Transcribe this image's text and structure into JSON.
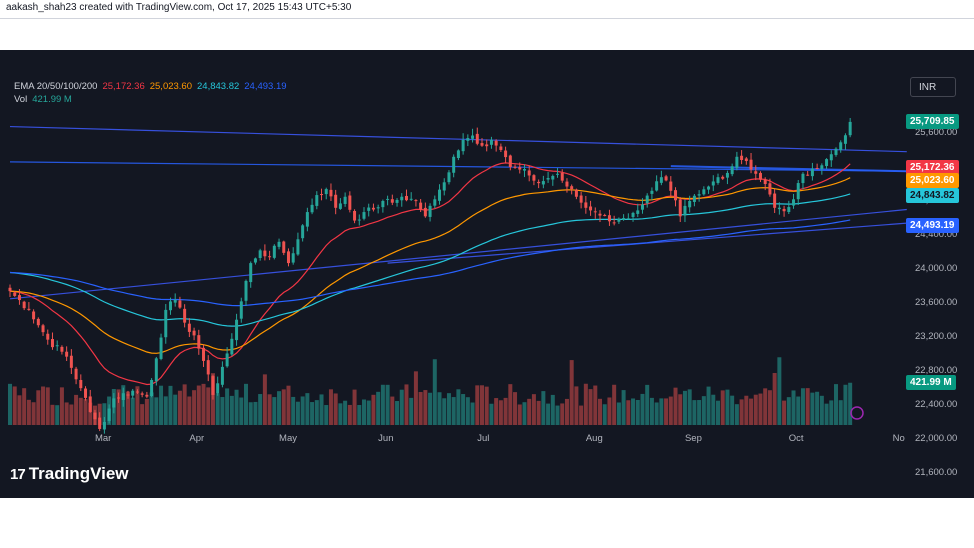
{
  "header": {
    "text": "aakash_shah23 created with TradingView.com, Oct 17, 2025 15:43 UTC+5:30"
  },
  "legend": {
    "ema_label": "EMA 20/50/100/200",
    "ema_values": [
      "25,172.36",
      "25,023.60",
      "24,843.82",
      "24,493.19"
    ],
    "ema_colors": [
      "#f23645",
      "#ff9800",
      "#26c6da",
      "#2962ff"
    ],
    "vol_label": "Vol",
    "vol_value": "421.99 M"
  },
  "currency": "INR",
  "price_tags": [
    {
      "text": "25,709.85",
      "bg": "#089981",
      "fg": "#ffffff",
      "price": 25709.85
    },
    {
      "text": "25,172.36",
      "bg": "#f23645",
      "fg": "#ffffff",
      "price": 25172.36
    },
    {
      "text": "25,023.60",
      "bg": "#ff9800",
      "fg": "#ffffff",
      "price": 25023.6
    },
    {
      "text": "24,843.82",
      "bg": "#26c6da",
      "fg": "#131722",
      "price": 24843.82
    },
    {
      "text": "24,493.19",
      "bg": "#2962ff",
      "fg": "#ffffff",
      "price": 24493.19
    }
  ],
  "volume_tag": {
    "text": "421.99 M",
    "bg": "#089981",
    "fg": "#ffffff"
  },
  "brand": {
    "name": "TradingView",
    "mark": "17"
  },
  "chart_data": {
    "type": "candlestick",
    "y_ticks": [
      "25,600.00",
      "25,200.00",
      "24,800.00",
      "24,400.00",
      "24,000.00",
      "23,600.00",
      "23,200.00",
      "22,800.00",
      "22,400.00",
      "22,000.00",
      "21,600.00"
    ],
    "y_tick_values": [
      25600,
      25200,
      24800,
      24400,
      24000,
      23600,
      23200,
      22800,
      22400,
      22000,
      21600
    ],
    "ylim": [
      21500,
      25850
    ],
    "x_ticks": [
      {
        "label": "Mar",
        "index": 18
      },
      {
        "label": "Apr",
        "index": 38
      },
      {
        "label": "May",
        "index": 57
      },
      {
        "label": "Jun",
        "index": 78
      },
      {
        "label": "Jul",
        "index": 99
      },
      {
        "label": "Aug",
        "index": 122
      },
      {
        "label": "Sep",
        "index": 143
      },
      {
        "label": "Oct",
        "index": 165
      },
      {
        "label": "No",
        "index": 187
      }
    ],
    "n_bars": 190,
    "price_keypoints": [
      [
        0,
        23720
      ],
      [
        4,
        23500
      ],
      [
        8,
        23150
      ],
      [
        12,
        22950
      ],
      [
        15,
        22580
      ],
      [
        17,
        22300
      ],
      [
        19,
        22100
      ],
      [
        22,
        22460
      ],
      [
        26,
        22550
      ],
      [
        29,
        22480
      ],
      [
        31,
        22930
      ],
      [
        33,
        23500
      ],
      [
        35,
        23620
      ],
      [
        37,
        23350
      ],
      [
        39,
        23200
      ],
      [
        41,
        22900
      ],
      [
        43,
        22500
      ],
      [
        45,
        22830
      ],
      [
        47,
        23160
      ],
      [
        49,
        23600
      ],
      [
        51,
        24050
      ],
      [
        53,
        24200
      ],
      [
        55,
        24120
      ],
      [
        57,
        24300
      ],
      [
        59,
        24050
      ],
      [
        61,
        24330
      ],
      [
        63,
        24650
      ],
      [
        65,
        24850
      ],
      [
        67,
        24920
      ],
      [
        69,
        24700
      ],
      [
        71,
        24830
      ],
      [
        73,
        24550
      ],
      [
        75,
        24650
      ],
      [
        77,
        24680
      ],
      [
        79,
        24780
      ],
      [
        81,
        24760
      ],
      [
        83,
        24830
      ],
      [
        86,
        24780
      ],
      [
        88,
        24600
      ],
      [
        90,
        24800
      ],
      [
        92,
        25000
      ],
      [
        94,
        25300
      ],
      [
        96,
        25500
      ],
      [
        98,
        25550
      ],
      [
        100,
        25430
      ],
      [
        102,
        25500
      ],
      [
        104,
        25380
      ],
      [
        106,
        25180
      ],
      [
        108,
        25150
      ],
      [
        110,
        25080
      ],
      [
        112,
        24990
      ],
      [
        114,
        25050
      ],
      [
        116,
        25100
      ],
      [
        118,
        24950
      ],
      [
        120,
        24830
      ],
      [
        122,
        24700
      ],
      [
        124,
        24650
      ],
      [
        126,
        24610
      ],
      [
        128,
        24520
      ],
      [
        130,
        24580
      ],
      [
        132,
        24640
      ],
      [
        134,
        24740
      ],
      [
        136,
        24900
      ],
      [
        138,
        25060
      ],
      [
        140,
        24900
      ],
      [
        142,
        24600
      ],
      [
        144,
        24780
      ],
      [
        146,
        24860
      ],
      [
        148,
        24950
      ],
      [
        150,
        25060
      ],
      [
        152,
        25110
      ],
      [
        154,
        25300
      ],
      [
        156,
        25250
      ],
      [
        158,
        25100
      ],
      [
        160,
        24980
      ],
      [
        162,
        24700
      ],
      [
        164,
        24660
      ],
      [
        166,
        24800
      ],
      [
        168,
        25100
      ],
      [
        170,
        25160
      ],
      [
        172,
        25200
      ],
      [
        174,
        25330
      ],
      [
        176,
        25470
      ],
      [
        178,
        25709.85
      ]
    ],
    "volume": {
      "last_value": "421.99 M",
      "unit": "M"
    },
    "ema_series": [
      {
        "name": "EMA 20",
        "period": 20,
        "color": "#f23645",
        "last": 25172.36
      },
      {
        "name": "EMA 50",
        "period": 50,
        "color": "#ff9800",
        "last": 25023.6
      },
      {
        "name": "EMA 100",
        "period": 100,
        "color": "#26c6da",
        "last": 24843.82
      },
      {
        "name": "EMA 200",
        "period": 200,
        "color": "#2962ff",
        "last": 24493.19
      }
    ],
    "trendlines": [
      {
        "name": "descending-resistance",
        "from": [
          0,
          25655
        ],
        "to": [
          190,
          25360
        ]
      },
      {
        "name": "horizontal-support",
        "from": [
          0,
          25240
        ],
        "to": [
          190,
          25130
        ]
      },
      {
        "name": "horizontal-zone",
        "from": [
          140,
          25190
        ],
        "to": [
          190,
          25130
        ]
      },
      {
        "name": "rising-support",
        "from": [
          0,
          23630
        ],
        "to": [
          190,
          24680
        ]
      },
      {
        "name": "rising-channel-low",
        "from": [
          80,
          24050
        ],
        "to": [
          190,
          24520
        ]
      }
    ],
    "grid": false,
    "legend_position": "top-left"
  }
}
